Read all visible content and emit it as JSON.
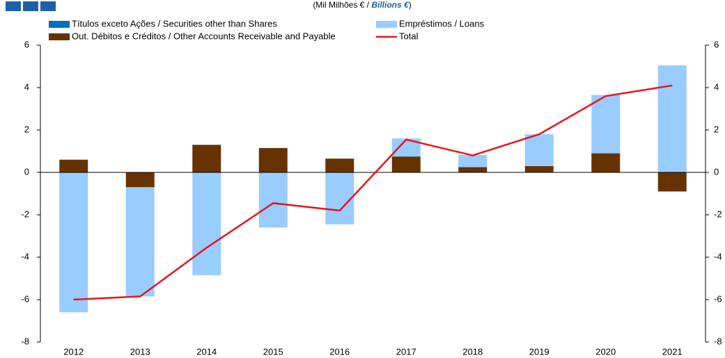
{
  "chart_data": {
    "type": "bar",
    "subtitle": [
      "(Mil Milhões € / ",
      "Billions €",
      ")"
    ],
    "categories": [
      "2012",
      "2013",
      "2014",
      "2015",
      "2016",
      "2017",
      "2018",
      "2019",
      "2020",
      "2021"
    ],
    "series": [
      {
        "name": "Títulos exceto Ações / Securities other than Shares",
        "color": "#0070c0",
        "type": "bar",
        "values": [
          0,
          0,
          0,
          0,
          0,
          0,
          0,
          0,
          0,
          0
        ]
      },
      {
        "name": "Out. Débitos e Créditos / Other Accounts Receivable and Payable",
        "color": "#663300",
        "type": "bar",
        "values": [
          0.6,
          -0.7,
          1.3,
          1.15,
          0.65,
          0.75,
          0.25,
          0.3,
          0.9,
          -0.9
        ]
      },
      {
        "name": "Empréstimos / Loans",
        "color": "#99ccff",
        "type": "bar",
        "values": [
          -6.6,
          -5.15,
          -4.85,
          -2.6,
          -2.45,
          0.85,
          0.57,
          1.5,
          2.75,
          5.05
        ]
      },
      {
        "name": "Total",
        "color": "#e8141e",
        "type": "line",
        "values": [
          -6.0,
          -5.85,
          -3.55,
          -1.45,
          -1.8,
          1.55,
          0.8,
          1.8,
          3.6,
          4.1
        ]
      }
    ],
    "ylim": [
      -8,
      6
    ],
    "yticks": [
      -8,
      -6,
      -4,
      -2,
      0,
      2,
      4,
      6
    ],
    "y2lim": [
      -8,
      6
    ],
    "y2ticks": [
      -8,
      -6,
      -4,
      -2,
      0,
      2,
      4,
      6
    ],
    "grid": false
  }
}
